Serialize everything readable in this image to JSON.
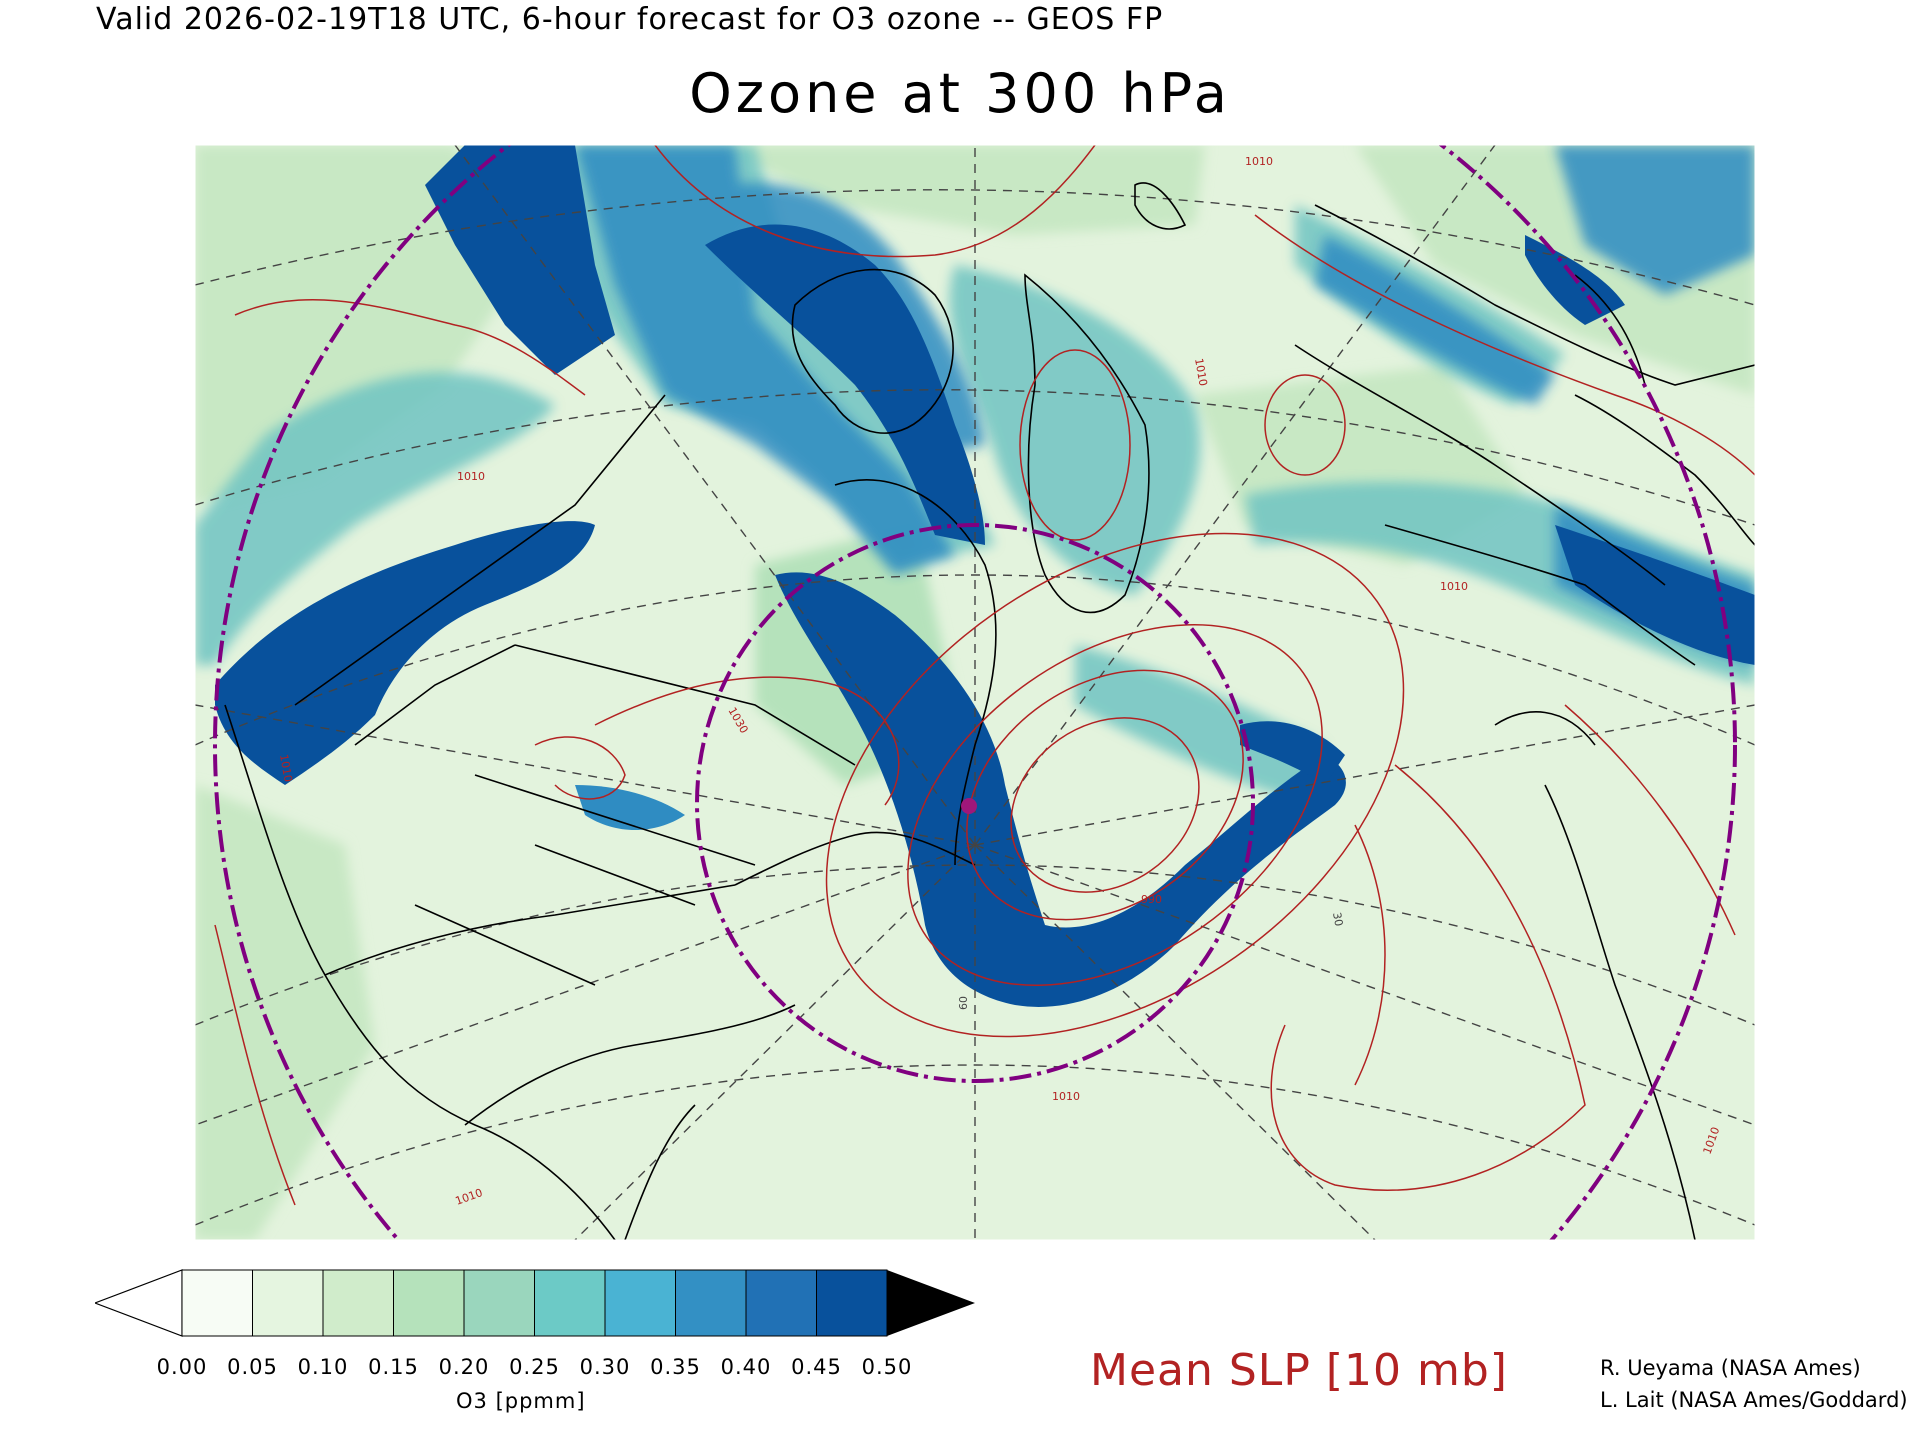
{
  "header": {
    "valid_line": "Valid 2026-02-19T18 UTC, 6-hour forecast for O3 ozone -- GEOS FP",
    "title": "Ozone at 300 hPa"
  },
  "map": {
    "contour_labels": [
      "1010",
      "1010",
      "1010",
      "1010",
      "1010",
      "1010",
      "1010",
      "1030",
      "990",
      "60",
      "30",
      "1010"
    ],
    "colors": {
      "background": "#e6f5e1",
      "contour": "#b22222",
      "circle": "#800080",
      "coast": "#000000"
    }
  },
  "colorbar": {
    "ticks": [
      "0.00",
      "0.05",
      "0.10",
      "0.15",
      "0.20",
      "0.25",
      "0.30",
      "0.35",
      "0.40",
      "0.45",
      "0.50"
    ],
    "colors": [
      "#f7fcf5",
      "#e5f5e0",
      "#d0eccb",
      "#b5e2bb",
      "#9ad6bd",
      "#6ccac6",
      "#4ab3d3",
      "#3390c4",
      "#2171b5",
      "#08519c",
      "#000000"
    ],
    "label": "O3 [ppmm]"
  },
  "legend": {
    "slp": "Mean SLP [10 mb]"
  },
  "credits": {
    "line1": "R. Ueyama (NASA Ames)",
    "line2": "L. Lait (NASA Ames/Goddard)"
  }
}
